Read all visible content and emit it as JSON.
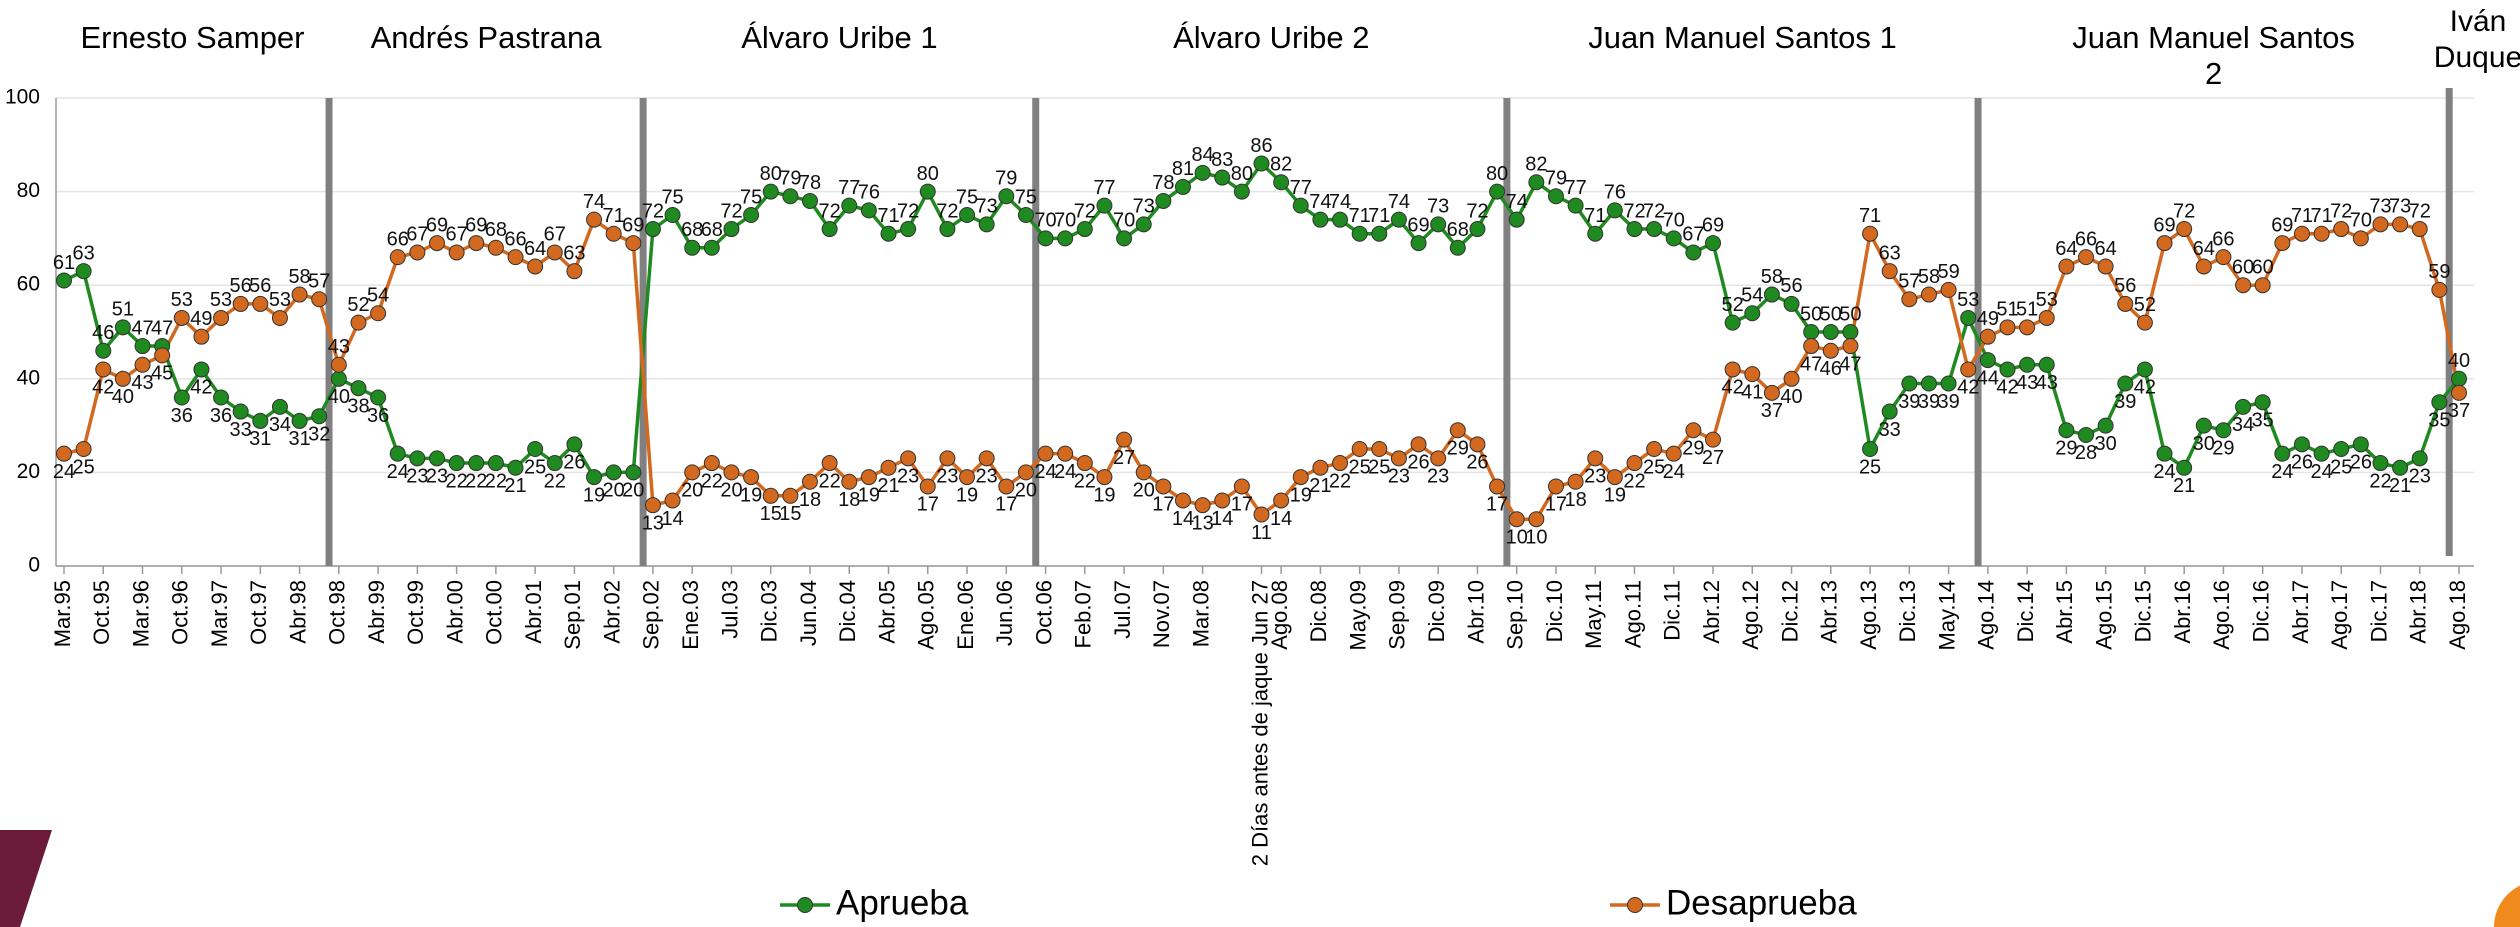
{
  "chart_data": {
    "type": "line",
    "periods": [
      "Ernesto Samper",
      "Andrés  Pastrana",
      "Álvaro Uribe 1",
      "Álvaro Uribe 2",
      "Juan Manuel Santos 1",
      "Juan Manuel Santos 2",
      "Iván\nDuque"
    ],
    "categories": [
      "Mar.95",
      null,
      "Oct.95",
      null,
      "Mar.96",
      null,
      "Oct.96",
      null,
      "Mar.97",
      null,
      "Oct.97",
      null,
      "Abr.98",
      null,
      "Oct.98",
      null,
      "Abr.99",
      null,
      "Oct.99",
      null,
      "Abr.00",
      null,
      "Oct.00",
      null,
      "Abr.01",
      null,
      "Sep.01",
      null,
      "Abr.02",
      null,
      "Sep.02",
      null,
      "Ene.03",
      null,
      "Jul.03",
      null,
      "Dic.03",
      null,
      "Jun.04",
      null,
      "Dic.04",
      null,
      "Abr.05",
      null,
      "Ago.05",
      null,
      "Ene.06",
      null,
      "Jun.06",
      null,
      "Oct.06",
      null,
      "Feb.07",
      null,
      "Jul.07",
      null,
      "Nov.07",
      null,
      "Mar.08",
      null,
      null,
      "2 Días antes de jaque Jun 27",
      "Ago.08",
      null,
      "Dic.08",
      null,
      "May.09",
      null,
      "Sep.09",
      null,
      "Dic.09",
      null,
      "Abr.10",
      null,
      "Sep.10",
      null,
      "Dic.10",
      null,
      "May.11",
      null,
      "Ago.11",
      null,
      "Dic.11",
      null,
      "Abr.12",
      null,
      "Ago.12",
      null,
      "Dic.12",
      null,
      "Abr.13",
      null,
      "Ago.13",
      null,
      "Dic.13",
      null,
      "May.14",
      null,
      "Ago.14",
      null,
      "Dic.14",
      null,
      "Abr.15",
      null,
      "Ago.15",
      null,
      "Dic.15",
      null,
      "Abr.16",
      null,
      "Ago.16",
      null,
      "Dic.16",
      null,
      "Abr.17",
      null,
      "Ago.17",
      null,
      "Dic.17",
      null,
      "Abr.18",
      null,
      "Ago.18"
    ],
    "series": [
      {
        "name": "Aprueba",
        "color": "#1f8a1f",
        "values": [
          61,
          63,
          46,
          51,
          47,
          47,
          36,
          42,
          36,
          33,
          31,
          34,
          31,
          32,
          40,
          38,
          36,
          24,
          23,
          23,
          22,
          22,
          22,
          21,
          25,
          22,
          26,
          19,
          20,
          20,
          72,
          75,
          68,
          68,
          72,
          75,
          80,
          79,
          78,
          72,
          77,
          76,
          71,
          72,
          80,
          72,
          75,
          73,
          79,
          75,
          70,
          70,
          72,
          77,
          70,
          73,
          78,
          81,
          84,
          83,
          80,
          86,
          82,
          77,
          74,
          74,
          71,
          71,
          74,
          69,
          73,
          68,
          72,
          80,
          74,
          82,
          79,
          77,
          71,
          76,
          72,
          72,
          70,
          67,
          69,
          52,
          54,
          58,
          56,
          50,
          50,
          50,
          25,
          33,
          39,
          39,
          39,
          53,
          44,
          42,
          43,
          43,
          29,
          28,
          30,
          39,
          42,
          24,
          21,
          30,
          29,
          34,
          35,
          24,
          26,
          24,
          25,
          26,
          22,
          21,
          23,
          35,
          40
        ]
      },
      {
        "name": "Desaprueba",
        "color": "#d2691e",
        "values": [
          24,
          25,
          42,
          40,
          43,
          45,
          53,
          49,
          53,
          56,
          56,
          53,
          58,
          57,
          43,
          52,
          54,
          66,
          67,
          69,
          67,
          69,
          68,
          66,
          64,
          67,
          63,
          74,
          71,
          69,
          13,
          14,
          20,
          22,
          20,
          19,
          15,
          15,
          18,
          22,
          18,
          19,
          21,
          23,
          17,
          23,
          19,
          23,
          17,
          20,
          24,
          24,
          22,
          19,
          27,
          20,
          17,
          14,
          13,
          14,
          17,
          11,
          14,
          19,
          21,
          22,
          25,
          25,
          23,
          26,
          23,
          29,
          26,
          17,
          10,
          10,
          17,
          18,
          23,
          19,
          22,
          25,
          24,
          29,
          27,
          42,
          41,
          37,
          40,
          47,
          46,
          47,
          71,
          63,
          57,
          58,
          59,
          42,
          49,
          51,
          51,
          53,
          64,
          66,
          64,
          56,
          52,
          69,
          72,
          64,
          66,
          60,
          60,
          69,
          71,
          71,
          72,
          70,
          73,
          73,
          72,
          59,
          37
        ]
      }
    ],
    "ylim": [
      0,
      100
    ],
    "yticks": [
      0,
      20,
      40,
      60,
      80,
      100
    ],
    "grid": true
  }
}
